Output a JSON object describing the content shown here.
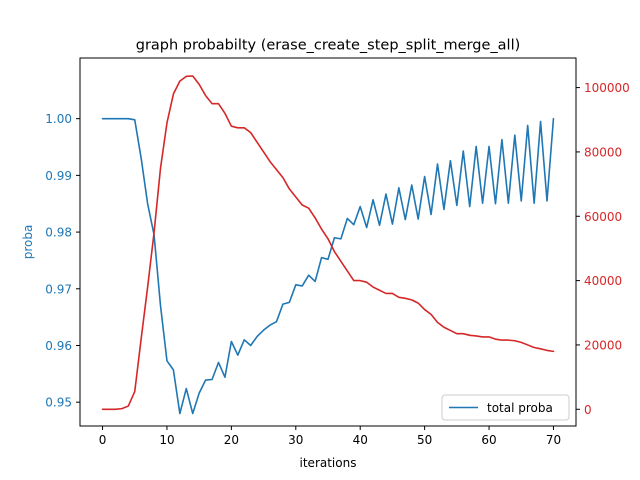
{
  "chart_data": {
    "type": "line",
    "title": "graph probabilty (erase_create_step_split_merge_all)",
    "xlabel": "iterations",
    "ylabel_left": "proba",
    "ylabel_right": "",
    "xlim": [
      -3.5,
      73.5
    ],
    "ylim_left": [
      0.9458,
      1.0107
    ],
    "ylim_right": [
      -5200,
      109200
    ],
    "x_ticks": [
      0,
      10,
      20,
      30,
      40,
      50,
      60,
      70
    ],
    "y_ticks_left": [
      0.95,
      0.96,
      0.97,
      0.98,
      0.99,
      1.0
    ],
    "y_ticks_right": [
      0,
      20000,
      40000,
      60000,
      80000,
      100000
    ],
    "legend_position": "lower-right",
    "grid": false,
    "colors": {
      "left_axis": "#1f77b4",
      "right_axis": "#d62728",
      "frame": "#000000"
    },
    "series": [
      {
        "name": "total proba",
        "axis": "left",
        "color": "#1f77b4",
        "x": [
          0,
          1,
          2,
          3,
          4,
          5,
          6,
          7,
          8,
          9,
          10,
          11,
          12,
          13,
          14,
          15,
          16,
          17,
          18,
          19,
          20,
          21,
          22,
          23,
          24,
          25,
          26,
          27,
          28,
          29,
          30,
          31,
          32,
          33,
          34,
          35,
          36,
          37,
          38,
          39,
          40,
          41,
          42,
          43,
          44,
          45,
          46,
          47,
          48,
          49,
          50,
          51,
          52,
          53,
          54,
          55,
          56,
          57,
          58,
          59,
          60,
          61,
          62,
          63,
          64,
          65,
          66,
          67,
          68,
          69,
          70
        ],
        "values": [
          1.0,
          1.0,
          1.0,
          1.0,
          1.0,
          0.9998,
          0.993,
          0.985,
          0.9795,
          0.967,
          0.9573,
          0.9557,
          0.948,
          0.9524,
          0.948,
          0.9516,
          0.9539,
          0.954,
          0.957,
          0.9544,
          0.9607,
          0.9583,
          0.961,
          0.96,
          0.9616,
          0.9627,
          0.9636,
          0.9642,
          0.9673,
          0.9676,
          0.9707,
          0.9705,
          0.9724,
          0.9713,
          0.9755,
          0.9752,
          0.979,
          0.9788,
          0.9824,
          0.9813,
          0.9845,
          0.9808,
          0.9857,
          0.9812,
          0.9867,
          0.9814,
          0.9878,
          0.9822,
          0.9883,
          0.9823,
          0.9898,
          0.9831,
          0.992,
          0.984,
          0.9926,
          0.9847,
          0.9943,
          0.9845,
          0.9951,
          0.9851,
          0.9951,
          0.985,
          0.9963,
          0.9851,
          0.9971,
          0.9855,
          0.9988,
          0.9851,
          0.9995,
          0.9855,
          1.0
        ]
      },
      {
        "name": "",
        "axis": "right",
        "color": "#d62728",
        "x": [
          0,
          1,
          2,
          3,
          4,
          5,
          6,
          7,
          8,
          9,
          10,
          11,
          12,
          13,
          14,
          15,
          16,
          17,
          18,
          19,
          20,
          21,
          22,
          23,
          24,
          25,
          26,
          27,
          28,
          29,
          30,
          31,
          32,
          33,
          34,
          35,
          36,
          37,
          38,
          39,
          40,
          41,
          42,
          43,
          44,
          45,
          46,
          47,
          48,
          49,
          50,
          51,
          52,
          53,
          54,
          55,
          56,
          57,
          58,
          59,
          60,
          61,
          62,
          63,
          64,
          65,
          66,
          67,
          68,
          69,
          70
        ],
        "values": [
          0,
          0,
          0,
          200,
          1000,
          5500,
          22000,
          38000,
          55000,
          75000,
          89000,
          98000,
          102000,
          103500,
          103600,
          101000,
          97500,
          95000,
          95000,
          92000,
          88000,
          87500,
          87500,
          86000,
          83000,
          80000,
          77000,
          74500,
          72000,
          68500,
          66000,
          63500,
          62500,
          59500,
          56000,
          53000,
          49000,
          46000,
          43000,
          40000,
          40000,
          39500,
          38000,
          37000,
          36000,
          36000,
          34800,
          34500,
          34000,
          33000,
          31000,
          29500,
          27000,
          25500,
          24500,
          23500,
          23500,
          23000,
          22800,
          22500,
          22500,
          21800,
          21500,
          21500,
          21300,
          20800,
          20000,
          19200,
          18800,
          18300,
          18000
        ]
      }
    ]
  }
}
